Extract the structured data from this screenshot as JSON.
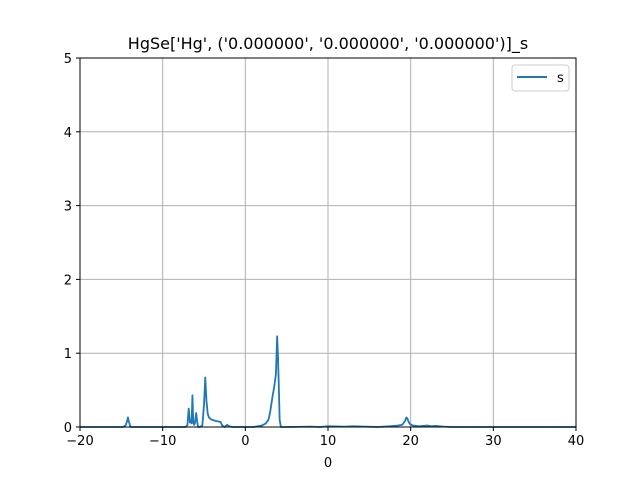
{
  "chart_data": {
    "type": "line",
    "title": "HgSe['Hg', ('0.000000', '0.000000', '0.000000')]_s",
    "xlabel": "0",
    "ylabel": "",
    "xlim": [
      -20,
      40
    ],
    "ylim": [
      0,
      5
    ],
    "xticks": [
      -20,
      -10,
      0,
      10,
      20,
      30,
      40
    ],
    "xtick_labels": [
      "−20",
      "−10",
      "0",
      "10",
      "20",
      "30",
      "40"
    ],
    "yticks": [
      0,
      1,
      2,
      3,
      4,
      5
    ],
    "ytick_labels": [
      "0",
      "1",
      "2",
      "3",
      "4",
      "5"
    ],
    "grid": true,
    "legend_position": "top-right",
    "colors": {
      "series": "#1f77b4",
      "grid": "#b0b0b0"
    },
    "series": [
      {
        "name": "s",
        "x": [
          -20,
          -14.8,
          -14.5,
          -14.3,
          -14.2,
          -14.1,
          -13.9,
          -7.2,
          -7.0,
          -6.85,
          -6.7,
          -6.6,
          -6.5,
          -6.4,
          -6.3,
          -6.2,
          -6.1,
          -5.95,
          -5.8,
          -5.7,
          -5.6,
          -5.5,
          -5.2,
          -5.0,
          -4.85,
          -4.7,
          -4.55,
          -4.4,
          -4.3,
          -4.1,
          -3.5,
          -3.0,
          -2.8,
          -2.5,
          -2.2,
          -2.0,
          -1.5,
          1.0,
          2.0,
          2.5,
          2.8,
          3.0,
          3.3,
          3.5,
          3.7,
          3.85,
          3.95,
          4.05,
          4.15,
          4.3,
          5.0,
          8.0,
          9.0,
          10.0,
          12.0,
          13.0,
          16.0,
          17.5,
          18.5,
          19.0,
          19.3,
          19.5,
          19.65,
          19.8,
          20.0,
          20.3,
          21.0,
          22.0,
          22.5,
          23.0,
          24.0,
          25.0,
          40.0
        ],
        "values": [
          0,
          0,
          0.02,
          0.08,
          0.13,
          0.08,
          0,
          0,
          0.03,
          0.25,
          0.06,
          0.08,
          0.05,
          0.43,
          0.06,
          0.03,
          0.05,
          0.19,
          0.05,
          0,
          0,
          0,
          0.02,
          0.3,
          0.67,
          0.35,
          0.18,
          0.13,
          0.12,
          0.1,
          0.08,
          0.07,
          0.02,
          0,
          0.03,
          0.01,
          0,
          0,
          0.02,
          0.05,
          0.1,
          0.2,
          0.42,
          0.55,
          0.72,
          1.23,
          0.95,
          0.55,
          0.1,
          0,
          0,
          0.005,
          0,
          0.01,
          0.005,
          0.01,
          0,
          0.01,
          0.02,
          0.03,
          0.08,
          0.13,
          0.1,
          0.06,
          0.03,
          0.02,
          0.01,
          0.02,
          0.01,
          0.015,
          0.005,
          0,
          0
        ]
      }
    ]
  }
}
